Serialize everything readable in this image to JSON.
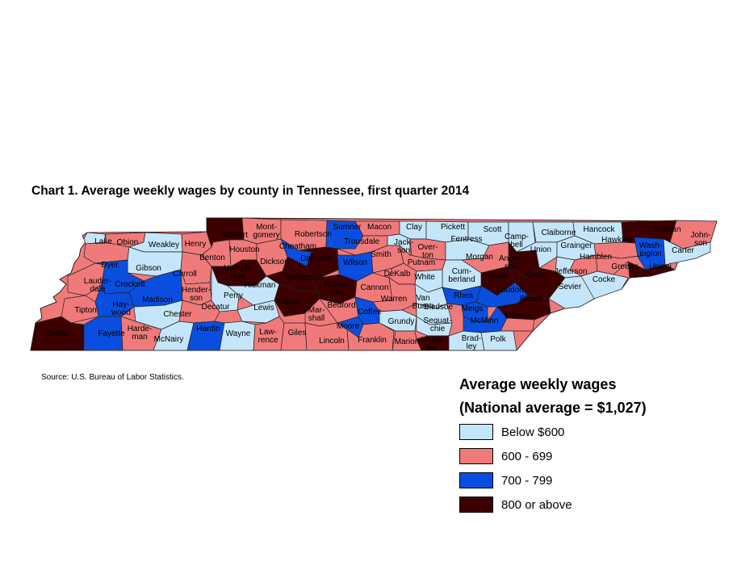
{
  "title": "Chart 1. Average weekly wages by county in Tennessee, first quarter 2014",
  "source": "Source: U.S. Bureau of Labor Statistics.",
  "legend": {
    "title": "Average weekly wages",
    "subtitle": "(National average = $1,027)",
    "items": [
      {
        "label": "Below $600",
        "color": "#c5e6fa"
      },
      {
        "label": "600 - 699",
        "color": "#f07a7a"
      },
      {
        "label": "700 - 799",
        "color": "#0a4ee0"
      },
      {
        "label": "800 or above",
        "color": "#3d0000"
      }
    ]
  },
  "counties": [
    {
      "name": "Lake",
      "label": [
        "Lake"
      ],
      "cat": 0
    },
    {
      "name": "Obion",
      "label": [
        "Obion"
      ],
      "cat": 1
    },
    {
      "name": "Weakley",
      "label": [
        "Weakley"
      ],
      "cat": 0
    },
    {
      "name": "Henry",
      "label": [
        "Henry"
      ],
      "cat": 1
    },
    {
      "name": "Stewart",
      "label": [
        "Stewart"
      ],
      "cat": 3
    },
    {
      "name": "Montgomery",
      "label": [
        "Mont-",
        "gomery"
      ],
      "cat": 1
    },
    {
      "name": "Robertson",
      "label": [
        "Robertson"
      ],
      "cat": 1
    },
    {
      "name": "Sumner",
      "label": [
        "Sumner"
      ],
      "cat": 2
    },
    {
      "name": "Macon",
      "label": [
        "Macon"
      ],
      "cat": 1
    },
    {
      "name": "Clay",
      "label": [
        "Clay"
      ],
      "cat": 0
    },
    {
      "name": "Pickett",
      "label": [
        "Pickett"
      ],
      "cat": 0
    },
    {
      "name": "Scott",
      "label": [
        "Scott"
      ],
      "cat": 0
    },
    {
      "name": "Campbell",
      "label": [
        "Camp-",
        "bell"
      ],
      "cat": 0
    },
    {
      "name": "Claiborne",
      "label": [
        "Claiborne"
      ],
      "cat": 0
    },
    {
      "name": "Hancock",
      "label": [
        "Hancock"
      ],
      "cat": 0
    },
    {
      "name": "Sullivan",
      "label": [
        "Sullivan"
      ],
      "cat": 3
    },
    {
      "name": "Johnson",
      "label": [
        "John-",
        "son"
      ],
      "cat": 1
    },
    {
      "name": "Dyer",
      "label": [
        "Dyer"
      ],
      "cat": 1
    },
    {
      "name": "Gibson",
      "label": [
        "Gibson"
      ],
      "cat": 0
    },
    {
      "name": "Carroll",
      "label": [
        "Carroll"
      ],
      "cat": 1
    },
    {
      "name": "Benton",
      "label": [
        "Benton"
      ],
      "cat": 1
    },
    {
      "name": "Houston",
      "label": [
        "Houston"
      ],
      "cat": 1
    },
    {
      "name": "Humphreys",
      "label": [
        "Humph-",
        "reys"
      ],
      "cat": 3
    },
    {
      "name": "Dickson",
      "label": [
        "Dickson"
      ],
      "cat": 1
    },
    {
      "name": "Cheatham",
      "label": [
        "Cheatham"
      ],
      "cat": 2
    },
    {
      "name": "Davidson",
      "label": [
        "Davidson"
      ],
      "cat": 3
    },
    {
      "name": "Trousdale",
      "label": [
        "Trousdale"
      ],
      "cat": 1
    },
    {
      "name": "Wilson",
      "label": [
        "Wilson"
      ],
      "cat": 2
    },
    {
      "name": "Smith",
      "label": [
        "Smith"
      ],
      "cat": 1
    },
    {
      "name": "Jackson",
      "label": [
        "Jack-",
        "son"
      ],
      "cat": 0
    },
    {
      "name": "Overton",
      "label": [
        "Over-",
        "ton"
      ],
      "cat": 1
    },
    {
      "name": "Putnam",
      "label": [
        "Putnam"
      ],
      "cat": 1
    },
    {
      "name": "Fentress",
      "label": [
        "Fentress"
      ],
      "cat": 0
    },
    {
      "name": "Morgan",
      "label": [
        "Morgan"
      ],
      "cat": 1
    },
    {
      "name": "Anderson",
      "label": [
        "Ander-",
        "son"
      ],
      "cat": 3
    },
    {
      "name": "Union",
      "label": [
        "Union"
      ],
      "cat": 0
    },
    {
      "name": "Grainger",
      "label": [
        "Grainger"
      ],
      "cat": 0
    },
    {
      "name": "Hawkins",
      "label": [
        "Hawkins"
      ],
      "cat": 1
    },
    {
      "name": "Washington",
      "label": [
        "Wash-",
        "ington"
      ],
      "cat": 2
    },
    {
      "name": "Carter",
      "label": [
        "Carter"
      ],
      "cat": 0
    },
    {
      "name": "Unicoi",
      "label": [
        "Unicoi"
      ],
      "cat": 3
    },
    {
      "name": "Greene",
      "label": [
        "Greene"
      ],
      "cat": 1
    },
    {
      "name": "Hamblen",
      "label": [
        "Hamblen"
      ],
      "cat": 1
    },
    {
      "name": "Jefferson",
      "label": [
        "Jefferson"
      ],
      "cat": 0
    },
    {
      "name": "Knox",
      "label": [
        "Knox"
      ],
      "cat": 3
    },
    {
      "name": "Roane",
      "label": [
        "Roane"
      ],
      "cat": 3
    },
    {
      "name": "Cumberland",
      "label": [
        "Cum-",
        "berland"
      ],
      "cat": 0
    },
    {
      "name": "White",
      "label": [
        "White"
      ],
      "cat": 0
    },
    {
      "name": "DeKalb",
      "label": [
        "DeKalb"
      ],
      "cat": 1
    },
    {
      "name": "Lauderdale",
      "label": [
        "Lauder-",
        "dale"
      ],
      "cat": 1
    },
    {
      "name": "Crockett",
      "label": [
        "Crockett"
      ],
      "cat": 2
    },
    {
      "name": "Haywood",
      "label": [
        "Hay-",
        "wood"
      ],
      "cat": 2
    },
    {
      "name": "Madison",
      "label": [
        "Madison"
      ],
      "cat": 2
    },
    {
      "name": "Henderson",
      "label": [
        "Hender-",
        "son"
      ],
      "cat": 1
    },
    {
      "name": "Perry",
      "label": [
        "Perry"
      ],
      "cat": 0
    },
    {
      "name": "Hickman",
      "label": [
        "Hickman"
      ],
      "cat": 0
    },
    {
      "name": "Williamson",
      "label": [
        "Williamson"
      ],
      "cat": 3
    },
    {
      "name": "Rutherford",
      "label": [
        "Ruther-",
        "ford"
      ],
      "cat": 3
    },
    {
      "name": "Cannon",
      "label": [
        "Cannon"
      ],
      "cat": 1
    },
    {
      "name": "Warren",
      "label": [
        "Warren"
      ],
      "cat": 1
    },
    {
      "name": "Van Buren",
      "label": [
        "Van",
        "Buren"
      ],
      "cat": 0
    },
    {
      "name": "Bledsoe",
      "label": [
        "Bledsoe"
      ],
      "cat": 0
    },
    {
      "name": "Rhea",
      "label": [
        "Rhea"
      ],
      "cat": 2
    },
    {
      "name": "Meigs",
      "label": [
        "Meigs"
      ],
      "cat": 2
    },
    {
      "name": "Loudon",
      "label": [
        "Loudon"
      ],
      "cat": 2
    },
    {
      "name": "Blount",
      "label": [
        "Blount"
      ],
      "cat": 3
    },
    {
      "name": "Sevier",
      "label": [
        "Sevier"
      ],
      "cat": 0
    },
    {
      "name": "Cocke",
      "label": [
        "Cocke"
      ],
      "cat": 0
    },
    {
      "name": "Tipton",
      "label": [
        "Tipton"
      ],
      "cat": 1
    },
    {
      "name": "Chester",
      "label": [
        "Chester"
      ],
      "cat": 0
    },
    {
      "name": "Decatur",
      "label": [
        "Decatur"
      ],
      "cat": 1
    },
    {
      "name": "Lewis",
      "label": [
        "Lewis"
      ],
      "cat": 0
    },
    {
      "name": "Maury",
      "label": [
        "Maury"
      ],
      "cat": 3
    },
    {
      "name": "Marshall",
      "label": [
        "Mar-",
        "shall"
      ],
      "cat": 1
    },
    {
      "name": "Bedford",
      "label": [
        "Bedford"
      ],
      "cat": 1
    },
    {
      "name": "Coffee",
      "label": [
        "Coffee"
      ],
      "cat": 2
    },
    {
      "name": "Grundy",
      "label": [
        "Grundy"
      ],
      "cat": 0
    },
    {
      "name": "Sequatchie",
      "label": [
        "Sequat-",
        "chie"
      ],
      "cat": 0
    },
    {
      "name": "McMinn",
      "label": [
        "McMinn"
      ],
      "cat": 2
    },
    {
      "name": "Monroe",
      "label": [
        "Monroe"
      ],
      "cat": 1
    },
    {
      "name": "Shelby",
      "label": [
        "Shelby"
      ],
      "cat": 3
    },
    {
      "name": "Fayette",
      "label": [
        "Fayette"
      ],
      "cat": 2
    },
    {
      "name": "Hardeman",
      "label": [
        "Harde-",
        "man"
      ],
      "cat": 1
    },
    {
      "name": "McNairy",
      "label": [
        "McNairy"
      ],
      "cat": 0
    },
    {
      "name": "Hardin",
      "label": [
        "Hardin"
      ],
      "cat": 2
    },
    {
      "name": "Wayne",
      "label": [
        "Wayne"
      ],
      "cat": 0
    },
    {
      "name": "Lawrence",
      "label": [
        "Law-",
        "rence"
      ],
      "cat": 1
    },
    {
      "name": "Giles",
      "label": [
        "Giles"
      ],
      "cat": 1
    },
    {
      "name": "Lincoln",
      "label": [
        "Lincoln"
      ],
      "cat": 1
    },
    {
      "name": "Moore",
      "label": [
        "Moore"
      ],
      "cat": 2
    },
    {
      "name": "Franklin",
      "label": [
        "Franklin"
      ],
      "cat": 1
    },
    {
      "name": "Marion",
      "label": [
        "Marion"
      ],
      "cat": 1
    },
    {
      "name": "Hamilton",
      "label": [
        "Hamil-",
        "ton"
      ],
      "cat": 3
    },
    {
      "name": "Bradley",
      "label": [
        "Brad-",
        "ley"
      ],
      "cat": 0
    },
    {
      "name": "Polk",
      "label": [
        "Polk"
      ],
      "cat": 0
    }
  ]
}
